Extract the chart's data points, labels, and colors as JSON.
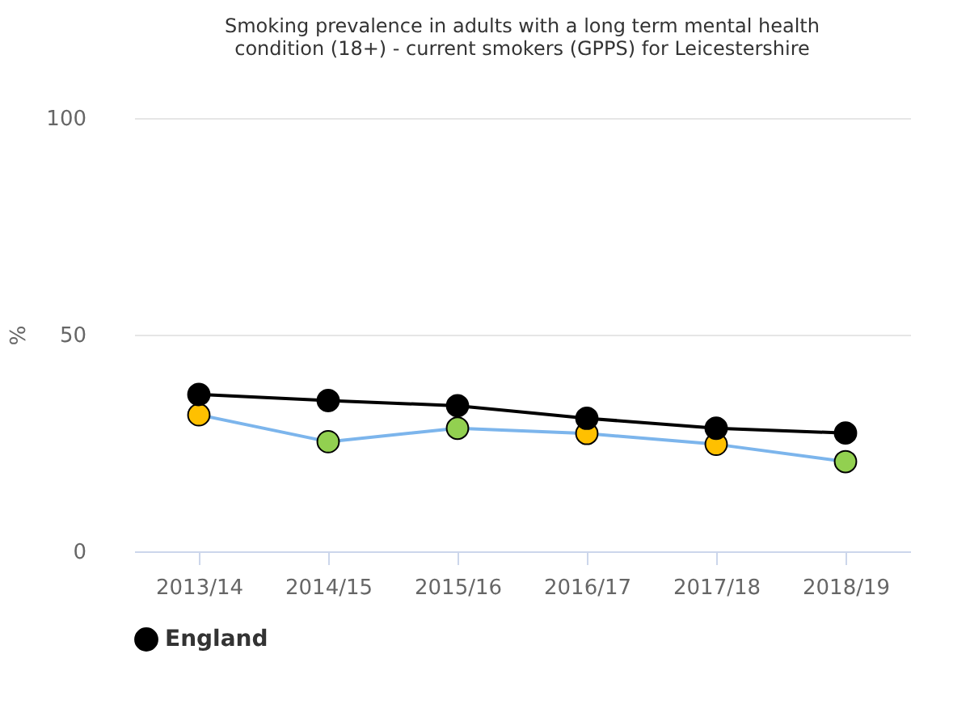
{
  "chart_data": {
    "type": "line",
    "title": [
      "Smoking prevalence in adults with a long term mental health",
      "condition (18+) - current smokers (GPPS) for Leicestershire"
    ],
    "categories": [
      "2013/14",
      "2014/15",
      "2015/16",
      "2016/17",
      "2017/18",
      "2018/19"
    ],
    "series": [
      {
        "color": "#7cb5ec",
        "values": [
          31.5,
          25.3,
          28.4,
          27.2,
          24.7,
          20.7
        ],
        "colors": [
          "#ffc000",
          "#92d050",
          "#92d050",
          "#ffc000",
          "#ffc000",
          "#92d050"
        ]
      },
      {
        "name": "England",
        "color": "#000000",
        "values": [
          36.2,
          34.8,
          33.6,
          30.7,
          28.4,
          27.3
        ]
      }
    ],
    "ylabel": "%",
    "ylim": [
      0,
      100
    ],
    "yticks": [
      0,
      50,
      100
    ],
    "grid": "y",
    "legend": "bottom",
    "marker": "circle",
    "line_style": "solid"
  }
}
